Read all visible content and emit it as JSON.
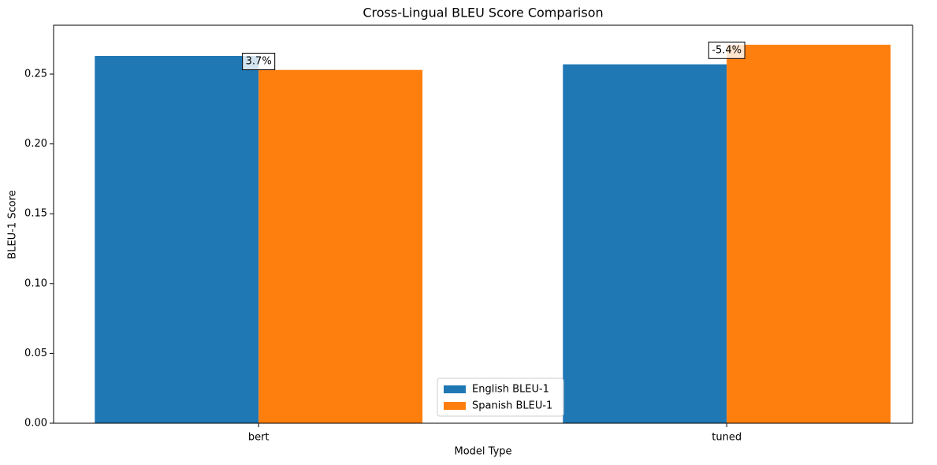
{
  "chart_data": {
    "type": "bar",
    "title": "Cross-Lingual BLEU Score Comparison",
    "x_label": "Model Type",
    "y_label": "BLEU-1 Score",
    "categories": [
      "bert",
      "tuned"
    ],
    "series": [
      {
        "name": "English BLEU-1",
        "color": "#1f77b4",
        "values": [
          0.263,
          0.257
        ]
      },
      {
        "name": "Spanish BLEU-1",
        "color": "#ff7f0e",
        "values": [
          0.253,
          0.271
        ]
      }
    ],
    "annotations": [
      "3.7%",
      "-5.4%"
    ],
    "ylim": [
      0,
      0.285
    ],
    "yticks": [
      {
        "value": 0,
        "label": "0.00"
      },
      {
        "value": 0.05,
        "label": "0.05"
      },
      {
        "value": 0.1,
        "label": "0.10"
      },
      {
        "value": 0.15,
        "label": "0.15"
      },
      {
        "value": 0.2,
        "label": "0.20"
      },
      {
        "value": 0.25,
        "label": "0.25"
      }
    ],
    "grid": false,
    "legend": "lower center"
  }
}
